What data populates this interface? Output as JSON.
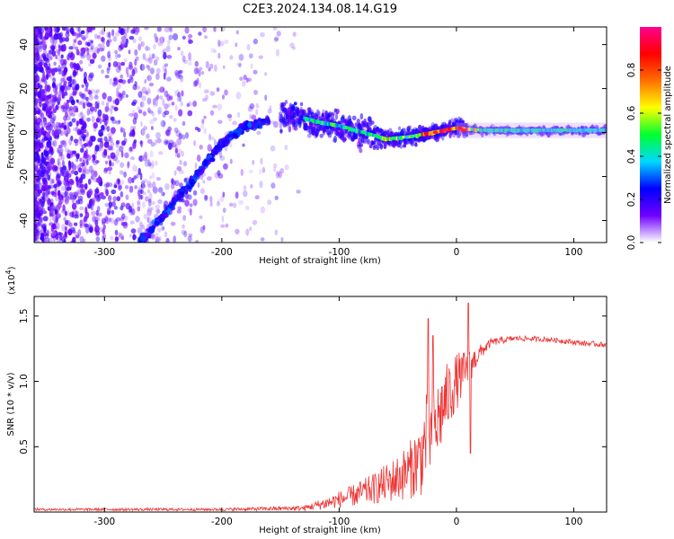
{
  "title": "C2E3.2024.134.08.14.G19",
  "colors": {
    "snr_line": "#ee3333",
    "ridge": "#1fd0a0",
    "ridge_peak": "#ff2030",
    "scatter": "#7a1ff0"
  },
  "colorbar": {
    "label": "Normalized spectral amplitude",
    "ticks": [
      "0.0",
      "0.2",
      "0.4",
      "0.6",
      "0.8"
    ],
    "tick_values": [
      0.0,
      0.2,
      0.4,
      0.6,
      0.8
    ],
    "range": [
      0,
      1
    ],
    "colormap": [
      "#ffffff",
      "#7000ff",
      "#0000ff",
      "#00d8ff",
      "#00ff30",
      "#ffff00",
      "#ff7000",
      "#ff0000",
      "#ff0090"
    ]
  },
  "chart_data": [
    {
      "type": "heatmap",
      "xlabel": "Height of straight line (km)",
      "ylabel": "Frequency (Hz)",
      "xlim": [
        -360,
        128
      ],
      "ylim": [
        -50,
        48
      ],
      "x_ticks": [
        -300,
        -200,
        -100,
        0,
        100
      ],
      "x_tick_labels": [
        "-300",
        "-200",
        "-100",
        "0",
        "100"
      ],
      "y_ticks": [
        -40,
        -20,
        0,
        20,
        40
      ],
      "y_tick_labels": [
        "-40",
        "-20",
        "0",
        "20",
        "40"
      ],
      "ridge": {
        "x": [
          -140,
          -120,
          -100,
          -80,
          -60,
          -40,
          -20,
          0,
          20,
          60,
          100,
          128
        ],
        "y": [
          8,
          5,
          3,
          0,
          -3,
          -2,
          0,
          2,
          1,
          1,
          1,
          1
        ]
      },
      "diagonal_streak": {
        "x": [
          -270,
          -250,
          -230,
          -215,
          -200,
          -180,
          -160
        ],
        "y": [
          -50,
          -38,
          -25,
          -15,
          -5,
          3,
          5
        ]
      }
    },
    {
      "type": "line",
      "xlabel": "Height of straight line (km)",
      "ylabel": "SNR (10 * v/v)",
      "multiplier_label": "(x10",
      "multiplier_exp": "4",
      "multiplier_close": ")",
      "xlim": [
        -360,
        128
      ],
      "ylim": [
        0.0,
        1.65
      ],
      "x_ticks": [
        -300,
        -200,
        -100,
        0,
        100
      ],
      "x_tick_labels": [
        "-300",
        "-200",
        "-100",
        "0",
        "100"
      ],
      "y_ticks": [
        0.5,
        1.0,
        1.5
      ],
      "y_tick_labels": [
        "0.5",
        "1.0",
        "1.5"
      ],
      "x": [
        -360,
        -300,
        -200,
        -130,
        -110,
        -90,
        -70,
        -50,
        -40,
        -30,
        -25,
        -20,
        -15,
        -10,
        -5,
        0,
        10,
        20,
        30,
        50,
        80,
        110,
        128
      ],
      "y": [
        0.02,
        0.02,
        0.02,
        0.03,
        0.07,
        0.12,
        0.18,
        0.26,
        0.32,
        0.42,
        0.6,
        0.58,
        0.72,
        0.84,
        0.92,
        1.0,
        1.1,
        1.22,
        1.3,
        1.33,
        1.32,
        1.29,
        1.28
      ],
      "noise": [
        0.01,
        0.01,
        0.01,
        0.02,
        0.05,
        0.08,
        0.12,
        0.18,
        0.22,
        0.3,
        0.35,
        0.35,
        0.32,
        0.28,
        0.25,
        0.22,
        0.14,
        0.06,
        0.03,
        0.02,
        0.02,
        0.02,
        0.02
      ],
      "spikes": [
        {
          "x": -24,
          "y": 1.48
        },
        {
          "x": -20,
          "y": 1.35
        },
        {
          "x": 10,
          "y": 1.6
        },
        {
          "x": 12,
          "y": 0.45
        }
      ]
    }
  ]
}
